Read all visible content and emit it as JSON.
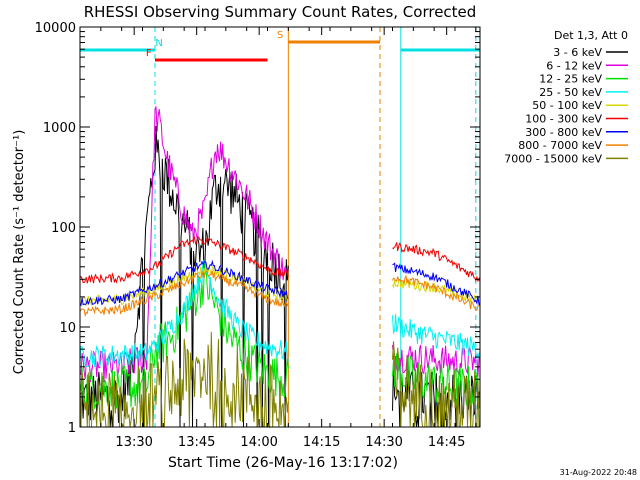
{
  "chart_data": {
    "type": "line",
    "title": "RHESSI Observing Summary Count Rates, Corrected",
    "xlabel": "Start Time (26-May-16 13:17:02)",
    "ylabel": "Corrected Count Rate (s⁻¹ detector⁻¹)",
    "yscale": "log",
    "xlim": [
      0,
      96
    ],
    "ylim": [
      1,
      10000
    ],
    "x_ticks": [
      {
        "v": 13,
        "label": "13:30"
      },
      {
        "v": 28,
        "label": "13:45"
      },
      {
        "v": 43,
        "label": "14:00"
      },
      {
        "v": 58,
        "label": "14:15"
      },
      {
        "v": 73,
        "label": "14:30"
      },
      {
        "v": 88,
        "label": "14:45"
      }
    ],
    "y_ticks": [
      {
        "v": 1,
        "label": "1"
      },
      {
        "v": 10,
        "label": "10"
      },
      {
        "v": 100,
        "label": "100"
      },
      {
        "v": 1000,
        "label": "1000"
      },
      {
        "v": 10000,
        "label": "10000"
      }
    ],
    "legend_title": "Det 1,3, Att 0",
    "data_gaps": [
      [
        50,
        75
      ]
    ],
    "series": [
      {
        "name": "3 - 6 keV",
        "color": "#000000",
        "noise": 0.6,
        "lowfloor": 1,
        "points": [
          [
            0,
            1.8
          ],
          [
            5,
            2
          ],
          [
            10,
            2
          ],
          [
            12,
            3
          ],
          [
            18,
            600
          ],
          [
            20,
            400
          ],
          [
            25,
            100
          ],
          [
            28,
            55
          ],
          [
            30,
            60
          ],
          [
            32,
            200
          ],
          [
            33,
            280
          ],
          [
            36,
            250
          ],
          [
            40,
            120
          ],
          [
            45,
            55
          ],
          [
            49,
            30
          ],
          [
            50,
            28
          ],
          [
            75,
            2.5
          ],
          [
            80,
            2
          ],
          [
            90,
            2
          ],
          [
            96,
            2
          ]
        ]
      },
      {
        "name": "6 - 12 keV",
        "color": "#e000e0",
        "noise": 0.35,
        "points": [
          [
            0,
            4
          ],
          [
            10,
            4
          ],
          [
            16,
            5
          ],
          [
            18,
            1300
          ],
          [
            19,
            1100
          ],
          [
            21,
            450
          ],
          [
            25,
            130
          ],
          [
            27,
            80
          ],
          [
            30,
            150
          ],
          [
            32,
            500
          ],
          [
            33,
            650
          ],
          [
            36,
            400
          ],
          [
            40,
            200
          ],
          [
            45,
            70
          ],
          [
            50,
            30
          ],
          [
            75,
            5
          ],
          [
            80,
            5
          ],
          [
            90,
            4.5
          ],
          [
            96,
            4.5
          ]
        ]
      },
      {
        "name": "12 - 25 keV",
        "color": "#00e000",
        "noise": 0.5,
        "points": [
          [
            0,
            2.5
          ],
          [
            16,
            2.5
          ],
          [
            18,
            6
          ],
          [
            22,
            8
          ],
          [
            27,
            18
          ],
          [
            30,
            30
          ],
          [
            32,
            18
          ],
          [
            36,
            8
          ],
          [
            40,
            5
          ],
          [
            45,
            3.5
          ],
          [
            50,
            3
          ],
          [
            75,
            4
          ],
          [
            80,
            3
          ],
          [
            90,
            2.5
          ],
          [
            96,
            2.5
          ]
        ]
      },
      {
        "name": "25 - 50 keV",
        "color": "#00f0f0",
        "noise": 0.25,
        "points": [
          [
            0,
            5
          ],
          [
            16,
            5.5
          ],
          [
            20,
            8
          ],
          [
            25,
            15
          ],
          [
            30,
            40
          ],
          [
            33,
            20
          ],
          [
            38,
            10
          ],
          [
            43,
            7
          ],
          [
            50,
            5.5
          ],
          [
            75,
            11
          ],
          [
            80,
            9
          ],
          [
            90,
            7
          ],
          [
            96,
            6
          ]
        ]
      },
      {
        "name": "50 - 100 keV",
        "color": "#d8d800",
        "noise": 0.12,
        "points": [
          [
            0,
            18
          ],
          [
            10,
            19
          ],
          [
            20,
            25
          ],
          [
            28,
            36
          ],
          [
            31,
            38
          ],
          [
            38,
            30
          ],
          [
            45,
            22
          ],
          [
            50,
            20
          ],
          [
            75,
            28
          ],
          [
            85,
            25
          ],
          [
            96,
            18
          ]
        ]
      },
      {
        "name": "100 - 300 keV",
        "color": "#f00000",
        "noise": 0.1,
        "points": [
          [
            0,
            30
          ],
          [
            10,
            31
          ],
          [
            18,
            40
          ],
          [
            24,
            65
          ],
          [
            28,
            75
          ],
          [
            32,
            70
          ],
          [
            40,
            50
          ],
          [
            46,
            36
          ],
          [
            50,
            33
          ],
          [
            75,
            65
          ],
          [
            85,
            55
          ],
          [
            96,
            30
          ]
        ]
      },
      {
        "name": "300 - 800 keV",
        "color": "#0000f0",
        "noise": 0.1,
        "points": [
          [
            0,
            18
          ],
          [
            10,
            19
          ],
          [
            20,
            28
          ],
          [
            28,
            40
          ],
          [
            31,
            42
          ],
          [
            38,
            32
          ],
          [
            45,
            24
          ],
          [
            50,
            21
          ],
          [
            75,
            40
          ],
          [
            85,
            32
          ],
          [
            96,
            18
          ]
        ]
      },
      {
        "name": "800 - 7000 keV",
        "color": "#f08000",
        "noise": 0.1,
        "points": [
          [
            0,
            14
          ],
          [
            10,
            15
          ],
          [
            20,
            22
          ],
          [
            28,
            32
          ],
          [
            31,
            34
          ],
          [
            38,
            26
          ],
          [
            45,
            19
          ],
          [
            50,
            16
          ],
          [
            75,
            32
          ],
          [
            85,
            25
          ],
          [
            96,
            15
          ]
        ]
      },
      {
        "name": "7000 - 15000 keV",
        "color": "#808000",
        "noise": 0.9,
        "lowfloor": 1,
        "points": [
          [
            0,
            1.5
          ],
          [
            10,
            1.5
          ],
          [
            20,
            2
          ],
          [
            25,
            3
          ],
          [
            30,
            4
          ],
          [
            35,
            3
          ],
          [
            42,
            2
          ],
          [
            50,
            1.5
          ],
          [
            75,
            3
          ],
          [
            80,
            2
          ],
          [
            90,
            1.5
          ],
          [
            96,
            1.5
          ]
        ]
      }
    ],
    "flags": [
      {
        "label": "N",
        "color": "#00e0e0",
        "y_log": 3.77,
        "segments": [
          [
            0,
            18
          ],
          [
            77,
            96
          ]
        ],
        "label_x": 19,
        "vlines_solid": [
          0,
          77
        ],
        "vlines_dashed": [
          18,
          95
        ]
      },
      {
        "label": "F",
        "color": "#ff0000",
        "y_log": 3.67,
        "segments": [
          [
            18,
            45
          ]
        ],
        "label_x": 16.5
      },
      {
        "label": "S",
        "color": "#f08000",
        "y_log": 3.85,
        "segments": [
          [
            50,
            72
          ]
        ],
        "label_x": 48,
        "vlines_solid": [
          50
        ],
        "vlines_dashed": [
          72
        ]
      }
    ]
  },
  "footer": {
    "timestamp": "31-Aug-2022 20:48"
  }
}
